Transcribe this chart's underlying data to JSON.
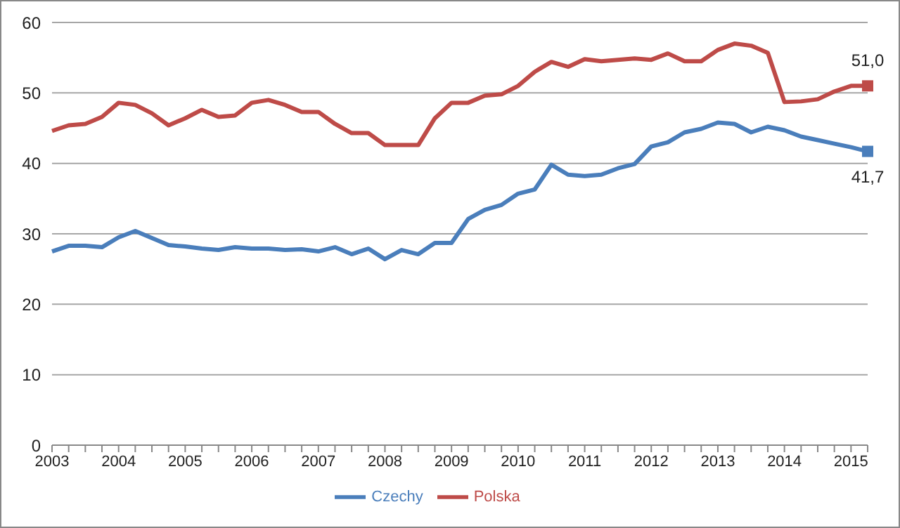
{
  "chart_data": {
    "type": "line",
    "categories": [
      "2003",
      null,
      null,
      null,
      "2004",
      null,
      null,
      null,
      "2005",
      null,
      null,
      null,
      "2006",
      null,
      null,
      null,
      "2007",
      null,
      null,
      null,
      "2008",
      null,
      null,
      null,
      "2009",
      null,
      null,
      null,
      "2010",
      null,
      null,
      null,
      "2011",
      null,
      null,
      null,
      "2012",
      null,
      null,
      null,
      "2013",
      null,
      null,
      null,
      "2014",
      null,
      null,
      null,
      "2015",
      null
    ],
    "series": [
      {
        "name": "Czechy",
        "color": "#4a7ebb",
        "values": [
          27.5,
          28.3,
          28.3,
          28.1,
          29.5,
          30.4,
          29.4,
          28.4,
          28.2,
          27.9,
          27.7,
          28.1,
          27.9,
          27.9,
          27.7,
          27.8,
          27.5,
          28.1,
          27.1,
          27.9,
          26.4,
          27.7,
          27.1,
          28.7,
          28.7,
          32.1,
          33.4,
          34.1,
          35.7,
          36.3,
          39.8,
          38.4,
          38.2,
          38.4,
          39.3,
          39.9,
          42.4,
          43.0,
          44.4,
          44.9,
          45.8,
          45.6,
          44.4,
          45.2,
          44.7,
          43.8,
          43.3,
          42.8,
          42.3,
          41.7
        ],
        "value_labels": [
          null,
          null,
          null,
          null,
          null,
          null,
          null,
          null,
          null,
          null,
          null,
          null,
          null,
          null,
          null,
          null,
          null,
          null,
          null,
          null,
          null,
          null,
          null,
          null,
          null,
          null,
          null,
          null,
          null,
          null,
          null,
          null,
          null,
          null,
          null,
          null,
          null,
          null,
          null,
          null,
          null,
          null,
          null,
          null,
          null,
          null,
          null,
          null,
          null,
          "41,7"
        ]
      },
      {
        "name": "Polska",
        "color": "#be4b48",
        "values": [
          44.6,
          45.4,
          45.6,
          46.6,
          48.6,
          48.3,
          47.1,
          45.4,
          46.4,
          47.6,
          46.6,
          46.8,
          48.6,
          49.0,
          48.3,
          47.3,
          47.3,
          45.6,
          44.3,
          44.3,
          42.6,
          42.6,
          42.6,
          46.4,
          48.6,
          48.6,
          49.6,
          49.8,
          51.0,
          53.0,
          54.4,
          53.7,
          54.8,
          54.5,
          54.7,
          54.9,
          54.7,
          55.6,
          54.5,
          54.5,
          56.1,
          57.0,
          56.7,
          55.7,
          48.7,
          48.8,
          49.1,
          50.2,
          51.0,
          51.0
        ],
        "value_labels": [
          null,
          null,
          null,
          null,
          null,
          null,
          null,
          null,
          null,
          null,
          null,
          null,
          null,
          null,
          null,
          null,
          null,
          null,
          null,
          null,
          null,
          null,
          null,
          null,
          null,
          null,
          null,
          null,
          null,
          null,
          null,
          null,
          null,
          null,
          null,
          null,
          null,
          null,
          null,
          null,
          null,
          null,
          null,
          null,
          null,
          null,
          null,
          null,
          null,
          "51,0"
        ]
      }
    ],
    "ylim": [
      0,
      60
    ],
    "yticks": [
      0,
      10,
      20,
      30,
      40,
      50,
      60
    ],
    "grid": "y",
    "legend": "bottom"
  }
}
